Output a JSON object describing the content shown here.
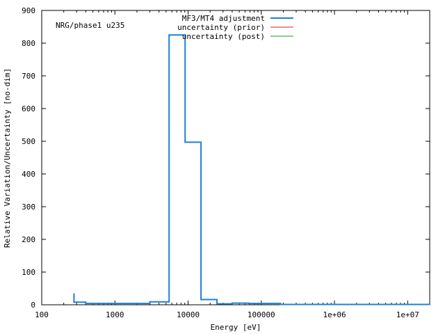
{
  "chart_data": {
    "type": "line",
    "title": "NRG/phase1 u235",
    "xlabel": "Energy [eV]",
    "ylabel": "Relative Variation/Uncertainty [no-dim]",
    "x_scale": "log",
    "xlim": [
      100,
      20000000
    ],
    "ylim": [
      0,
      900
    ],
    "x_ticks": [
      {
        "value": 100,
        "label": "100"
      },
      {
        "value": 1000,
        "label": "1000"
      },
      {
        "value": 10000,
        "label": "10000"
      },
      {
        "value": 100000,
        "label": "100000"
      },
      {
        "value": 1000000,
        "label": "1e+06"
      },
      {
        "value": 10000000,
        "label": "1e+07"
      }
    ],
    "y_ticks": [
      {
        "value": 0,
        "label": "0"
      },
      {
        "value": 100,
        "label": "100"
      },
      {
        "value": 200,
        "label": "200"
      },
      {
        "value": 300,
        "label": "300"
      },
      {
        "value": 400,
        "label": "400"
      },
      {
        "value": 500,
        "label": "500"
      },
      {
        "value": 600,
        "label": "600"
      },
      {
        "value": 700,
        "label": "700"
      },
      {
        "value": 800,
        "label": "800"
      },
      {
        "value": 900,
        "label": "900"
      }
    ],
    "legend_position": "top-right",
    "grid": false,
    "series": [
      {
        "name": "MF3/MT4 adjustment",
        "color": "#1f7fd6",
        "step": true,
        "points": [
          [
            276,
            35
          ],
          [
            276,
            8
          ],
          [
            400,
            8
          ],
          [
            400,
            4
          ],
          [
            3000,
            4
          ],
          [
            3000,
            9
          ],
          [
            5500,
            9
          ],
          [
            5500,
            825
          ],
          [
            9100,
            825
          ],
          [
            9100,
            497
          ],
          [
            15000,
            497
          ],
          [
            15000,
            16
          ],
          [
            24800,
            16
          ],
          [
            24800,
            3
          ],
          [
            40000,
            3
          ],
          [
            40000,
            5
          ],
          [
            67000,
            5
          ],
          [
            67000,
            4
          ],
          [
            183000,
            4
          ],
          [
            183000,
            1
          ],
          [
            20000000,
            1
          ]
        ]
      },
      {
        "name": "uncertainty (prior)",
        "color": "#d62020",
        "step": true,
        "points": []
      },
      {
        "name": "uncertainty (post)",
        "color": "#1a9a1a",
        "step": true,
        "points": []
      }
    ]
  }
}
